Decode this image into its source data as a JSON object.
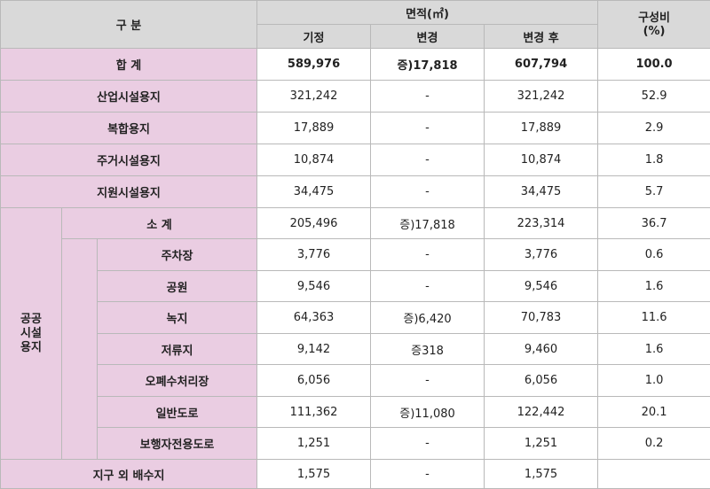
{
  "header": {
    "category": "구 분",
    "area": "면적(㎡)",
    "existing": "기정",
    "change": "변경",
    "after": "변경 후",
    "ratio": "구성비\n(%)"
  },
  "total": {
    "label": "합 계",
    "existing": "589,976",
    "change": "증)17,818",
    "after": "607,794",
    "ratio": "100.0"
  },
  "rows_top": [
    {
      "label": "산업시설용지",
      "existing": "321,242",
      "change": "-",
      "after": "321,242",
      "ratio": "52.9"
    },
    {
      "label": "복합용지",
      "existing": "17,889",
      "change": "-",
      "after": "17,889",
      "ratio": "2.9"
    },
    {
      "label": "주거시설용지",
      "existing": "10,874",
      "change": "-",
      "after": "10,874",
      "ratio": "1.8"
    },
    {
      "label": "지원시설용지",
      "existing": "34,475",
      "change": "-",
      "after": "34,475",
      "ratio": "5.7"
    }
  ],
  "public": {
    "group_label_lines": [
      "공공",
      "시설",
      "용지"
    ],
    "subtotal": {
      "label": "소 계",
      "existing": "205,496",
      "change": "증)17,818",
      "after": "223,314",
      "ratio": "36.7"
    },
    "items": [
      {
        "label": "주차장",
        "existing": "3,776",
        "change": "-",
        "after": "3,776",
        "ratio": "0.6"
      },
      {
        "label": "공원",
        "existing": "9,546",
        "change": "-",
        "after": "9,546",
        "ratio": "1.6"
      },
      {
        "label": "녹지",
        "existing": "64,363",
        "change": "증)6,420",
        "after": "70,783",
        "ratio": "11.6"
      },
      {
        "label": "저류지",
        "existing": "9,142",
        "change": "증318",
        "after": "9,460",
        "ratio": "1.6"
      },
      {
        "label": "오폐수처리장",
        "existing": "6,056",
        "change": "-",
        "after": "6,056",
        "ratio": "1.0"
      },
      {
        "label": "일반도로",
        "existing": "111,362",
        "change": "증)11,080",
        "after": "122,442",
        "ratio": "20.1"
      },
      {
        "label": "보행자전용도로",
        "existing": "1,251",
        "change": "-",
        "after": "1,251",
        "ratio": "0.2"
      }
    ]
  },
  "outside": {
    "label": "지구 외 배수지",
    "existing": "1,575",
    "change": "-",
    "after": "1,575",
    "ratio": ""
  }
}
